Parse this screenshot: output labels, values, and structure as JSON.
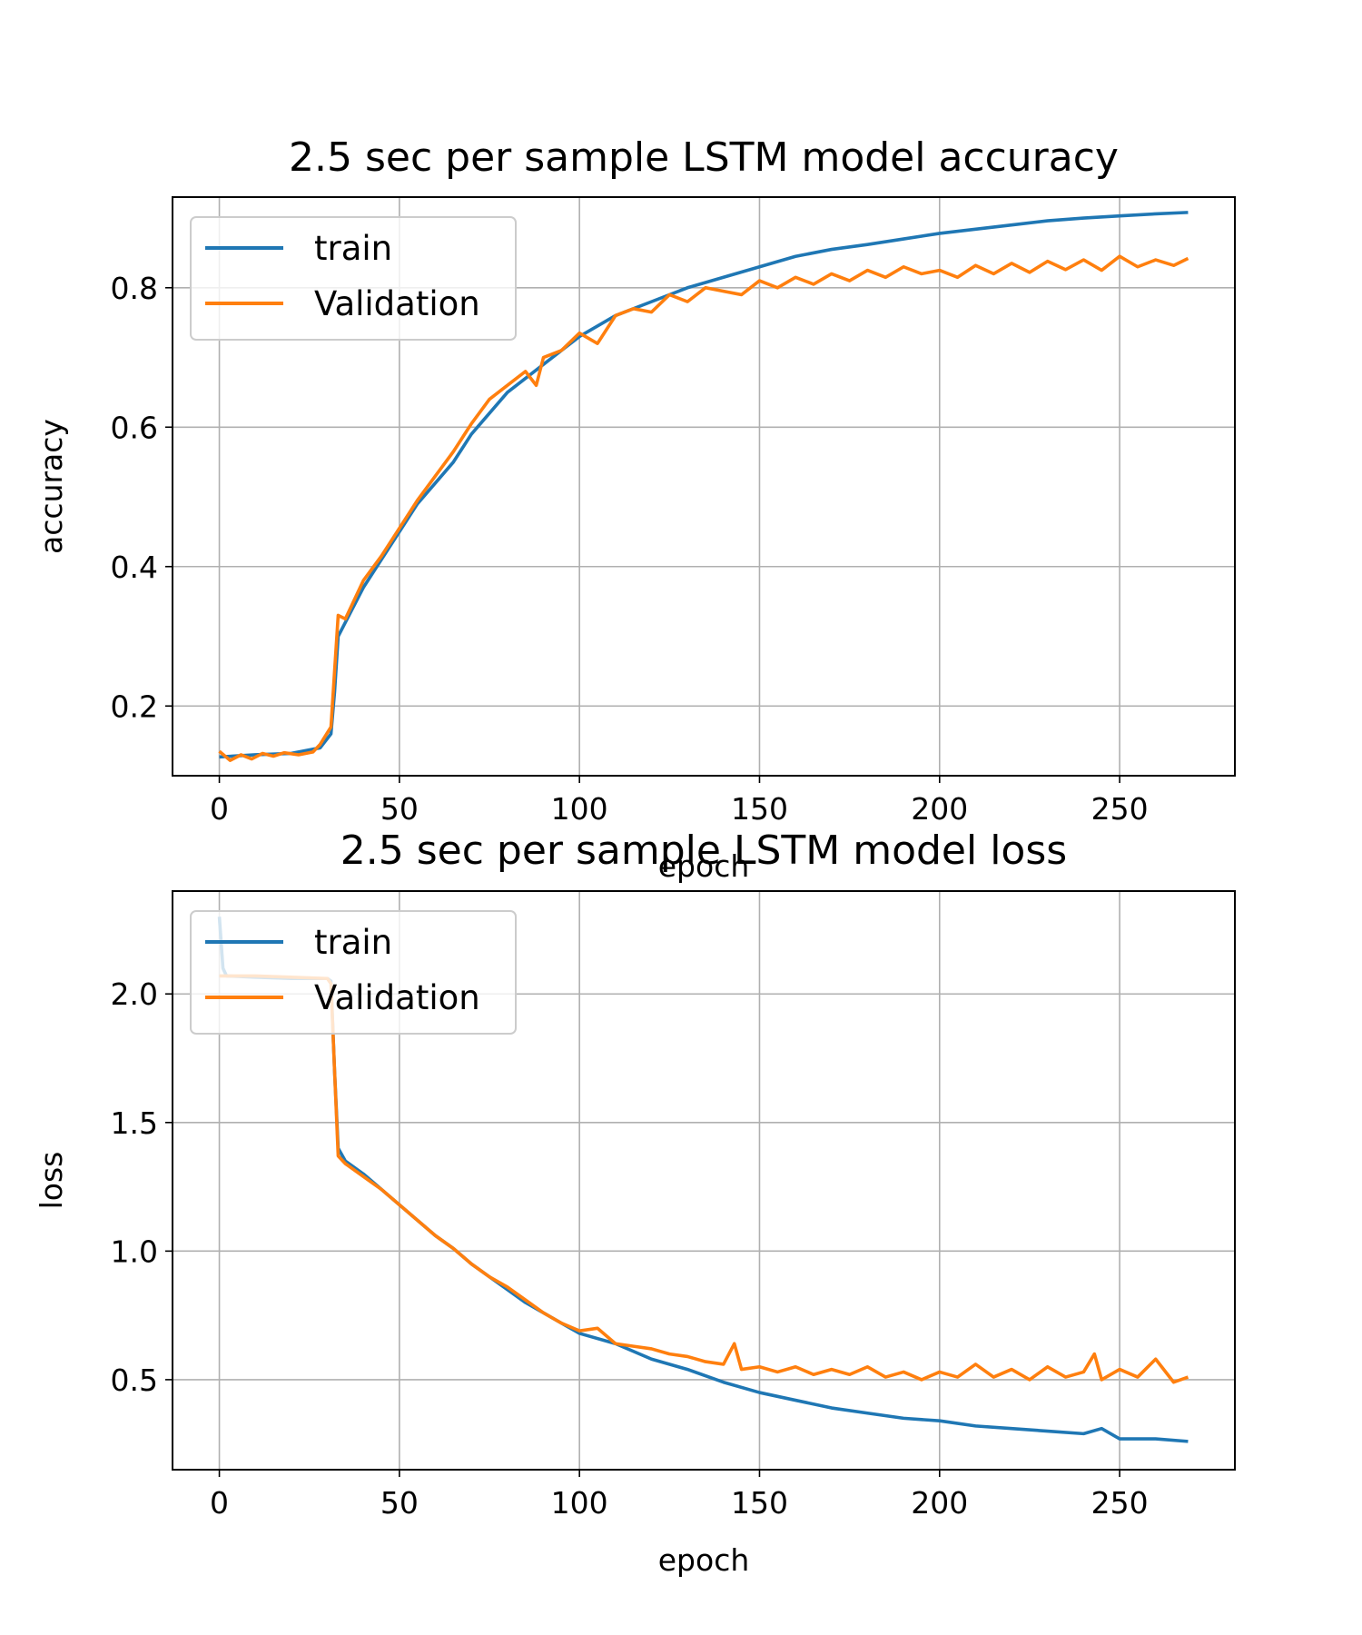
{
  "chart_data": [
    {
      "type": "line",
      "title": "2.5 sec per sample LSTM model accuracy",
      "xlabel": "epoch",
      "ylabel": "accuracy",
      "xlim": [
        -13,
        282
      ],
      "ylim": [
        0.1,
        0.93
      ],
      "xticks": [
        0,
        50,
        100,
        150,
        200,
        250
      ],
      "yticks": [
        0.2,
        0.4,
        0.6,
        0.8
      ],
      "xtick_labels": [
        "0",
        "50",
        "100",
        "150",
        "200",
        "250"
      ],
      "ytick_labels": [
        "0.2",
        "0.4",
        "0.6",
        "0.8"
      ],
      "grid": true,
      "legend": "upper-left",
      "series": [
        {
          "name": "train",
          "color": "#1f77b4",
          "x": [
            0,
            10,
            20,
            28,
            31,
            32,
            33,
            35,
            40,
            45,
            50,
            55,
            60,
            65,
            70,
            75,
            80,
            85,
            90,
            95,
            100,
            110,
            120,
            130,
            140,
            150,
            160,
            170,
            180,
            190,
            200,
            210,
            220,
            230,
            240,
            250,
            260,
            269
          ],
          "y": [
            0.127,
            0.13,
            0.132,
            0.14,
            0.16,
            0.22,
            0.3,
            0.32,
            0.37,
            0.41,
            0.45,
            0.49,
            0.52,
            0.55,
            0.59,
            0.62,
            0.65,
            0.67,
            0.69,
            0.71,
            0.73,
            0.76,
            0.78,
            0.8,
            0.815,
            0.83,
            0.845,
            0.855,
            0.862,
            0.87,
            0.878,
            0.884,
            0.89,
            0.896,
            0.9,
            0.903,
            0.906,
            0.908
          ]
        },
        {
          "name": "Validation",
          "color": "#ff7f0e",
          "x": [
            0,
            3,
            6,
            9,
            12,
            15,
            18,
            22,
            26,
            28,
            31,
            32,
            33,
            35,
            40,
            45,
            50,
            55,
            60,
            65,
            70,
            75,
            80,
            85,
            88,
            90,
            95,
            100,
            105,
            110,
            115,
            120,
            125,
            130,
            135,
            140,
            145,
            150,
            155,
            160,
            165,
            170,
            175,
            180,
            185,
            190,
            195,
            200,
            205,
            210,
            215,
            220,
            225,
            230,
            235,
            240,
            245,
            250,
            255,
            260,
            265,
            269
          ],
          "y": [
            0.135,
            0.122,
            0.13,
            0.124,
            0.132,
            0.128,
            0.133,
            0.13,
            0.134,
            0.145,
            0.17,
            0.25,
            0.33,
            0.325,
            0.38,
            0.415,
            0.455,
            0.495,
            0.53,
            0.565,
            0.605,
            0.64,
            0.66,
            0.68,
            0.66,
            0.7,
            0.71,
            0.735,
            0.72,
            0.76,
            0.77,
            0.765,
            0.79,
            0.78,
            0.8,
            0.795,
            0.79,
            0.81,
            0.8,
            0.815,
            0.805,
            0.82,
            0.81,
            0.825,
            0.815,
            0.83,
            0.82,
            0.825,
            0.815,
            0.832,
            0.82,
            0.835,
            0.822,
            0.838,
            0.826,
            0.84,
            0.825,
            0.845,
            0.83,
            0.84,
            0.832,
            0.842
          ]
        }
      ]
    },
    {
      "type": "line",
      "title": "2.5 sec per sample LSTM model loss",
      "xlabel": "epoch",
      "ylabel": "loss",
      "xlim": [
        -13,
        282
      ],
      "ylim": [
        0.15,
        2.4
      ],
      "xticks": [
        0,
        50,
        100,
        150,
        200,
        250
      ],
      "yticks": [
        0.5,
        1.0,
        1.5,
        2.0
      ],
      "xtick_labels": [
        "0",
        "50",
        "100",
        "150",
        "200",
        "250"
      ],
      "ytick_labels": [
        "0.5",
        "1.0",
        "1.5",
        "2.0"
      ],
      "grid": true,
      "legend": "upper-left",
      "series": [
        {
          "name": "train",
          "color": "#1f77b4",
          "x": [
            0,
            1,
            2,
            10,
            20,
            30,
            31,
            32,
            33,
            35,
            40,
            45,
            50,
            55,
            60,
            65,
            70,
            75,
            80,
            85,
            90,
            95,
            100,
            110,
            120,
            130,
            140,
            150,
            160,
            170,
            180,
            190,
            200,
            210,
            220,
            230,
            240,
            245,
            250,
            260,
            269
          ],
          "y": [
            2.3,
            2.1,
            2.07,
            2.065,
            2.06,
            2.06,
            2.05,
            1.7,
            1.4,
            1.35,
            1.3,
            1.24,
            1.18,
            1.12,
            1.06,
            1.01,
            0.95,
            0.9,
            0.85,
            0.8,
            0.76,
            0.72,
            0.68,
            0.64,
            0.58,
            0.54,
            0.49,
            0.45,
            0.42,
            0.39,
            0.37,
            0.35,
            0.34,
            0.32,
            0.31,
            0.3,
            0.29,
            0.31,
            0.27,
            0.27,
            0.26
          ]
        },
        {
          "name": "Validation",
          "color": "#ff7f0e",
          "x": [
            0,
            10,
            20,
            30,
            31,
            32,
            33,
            35,
            40,
            45,
            50,
            55,
            60,
            65,
            70,
            75,
            80,
            85,
            90,
            95,
            100,
            105,
            110,
            115,
            120,
            125,
            130,
            135,
            140,
            143,
            145,
            150,
            155,
            160,
            165,
            170,
            175,
            180,
            185,
            190,
            195,
            200,
            205,
            210,
            215,
            220,
            225,
            230,
            235,
            240,
            243,
            245,
            250,
            255,
            260,
            265,
            269
          ],
          "y": [
            2.07,
            2.07,
            2.065,
            2.06,
            2.04,
            1.7,
            1.37,
            1.34,
            1.29,
            1.24,
            1.18,
            1.12,
            1.06,
            1.01,
            0.95,
            0.9,
            0.86,
            0.81,
            0.76,
            0.72,
            0.69,
            0.7,
            0.64,
            0.63,
            0.62,
            0.6,
            0.59,
            0.57,
            0.56,
            0.64,
            0.54,
            0.55,
            0.53,
            0.55,
            0.52,
            0.54,
            0.52,
            0.55,
            0.51,
            0.53,
            0.5,
            0.53,
            0.51,
            0.56,
            0.51,
            0.54,
            0.5,
            0.55,
            0.51,
            0.53,
            0.6,
            0.5,
            0.54,
            0.51,
            0.58,
            0.49,
            0.51
          ]
        }
      ]
    }
  ]
}
